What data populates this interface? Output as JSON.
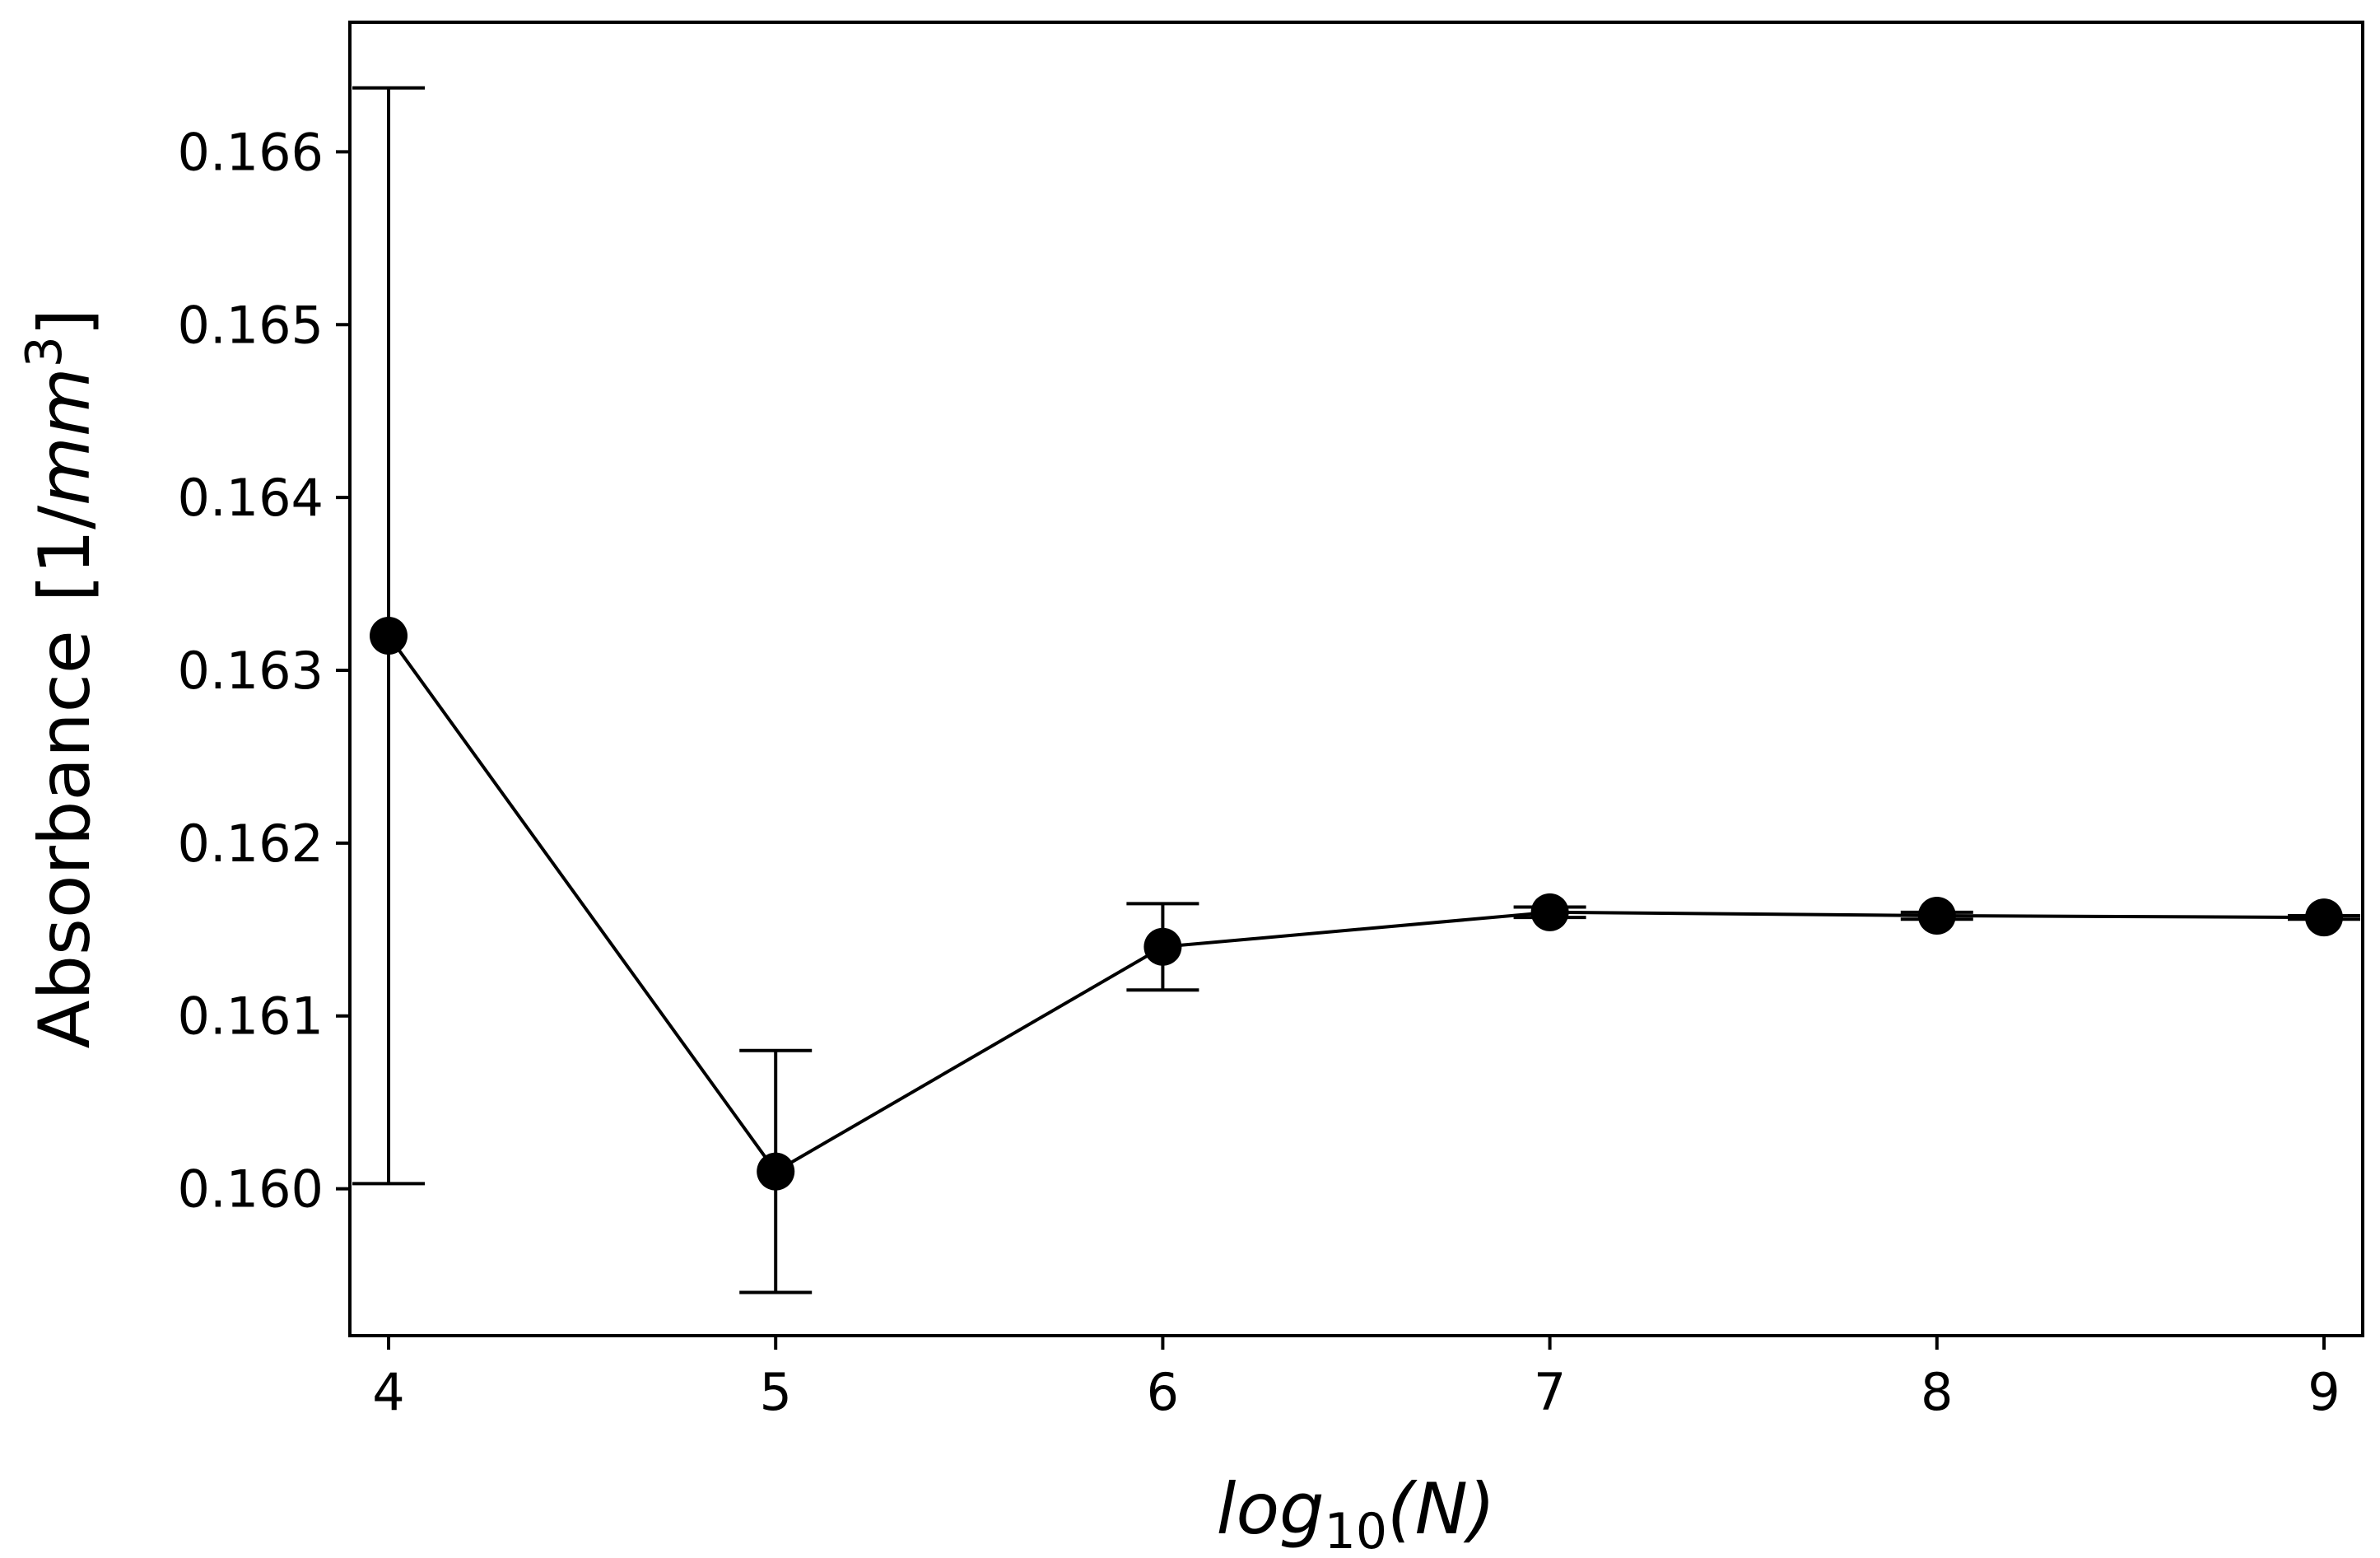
{
  "chart_data": {
    "type": "line",
    "title": "",
    "xlabel": {
      "func": "log",
      "sub": "10",
      "arg": "(N)"
    },
    "ylabel": {
      "main": "Absorbance",
      "unit_open": "[1/",
      "unit_var": "mm",
      "unit_exp": "3",
      "unit_close": "]"
    },
    "xlim": [
      3.9,
      9.1
    ],
    "ylim": [
      0.15915,
      0.16675
    ],
    "xticks": [
      4,
      5,
      6,
      7,
      8,
      9
    ],
    "yticks": [
      0.16,
      0.161,
      0.162,
      0.163,
      0.164,
      0.165,
      0.166
    ],
    "xtick_labels": [
      "4",
      "5",
      "6",
      "7",
      "8",
      "9"
    ],
    "ytick_labels": [
      "0.160",
      "0.161",
      "0.162",
      "0.163",
      "0.164",
      "0.165",
      "0.166"
    ],
    "series": [
      {
        "name": "Absorbance",
        "x": [
          4,
          5,
          6,
          7,
          8,
          9
        ],
        "y": [
          0.1632,
          0.1601,
          0.1614,
          0.1616,
          0.16158,
          0.16157
        ],
        "yerr": [
          0.00317,
          0.0007,
          0.00025,
          3e-05,
          2e-05,
          1e-05
        ]
      }
    ],
    "colors": {
      "line": "#000000",
      "marker": "#000000",
      "axes": "#000000"
    },
    "grid": false,
    "legend": null
  }
}
